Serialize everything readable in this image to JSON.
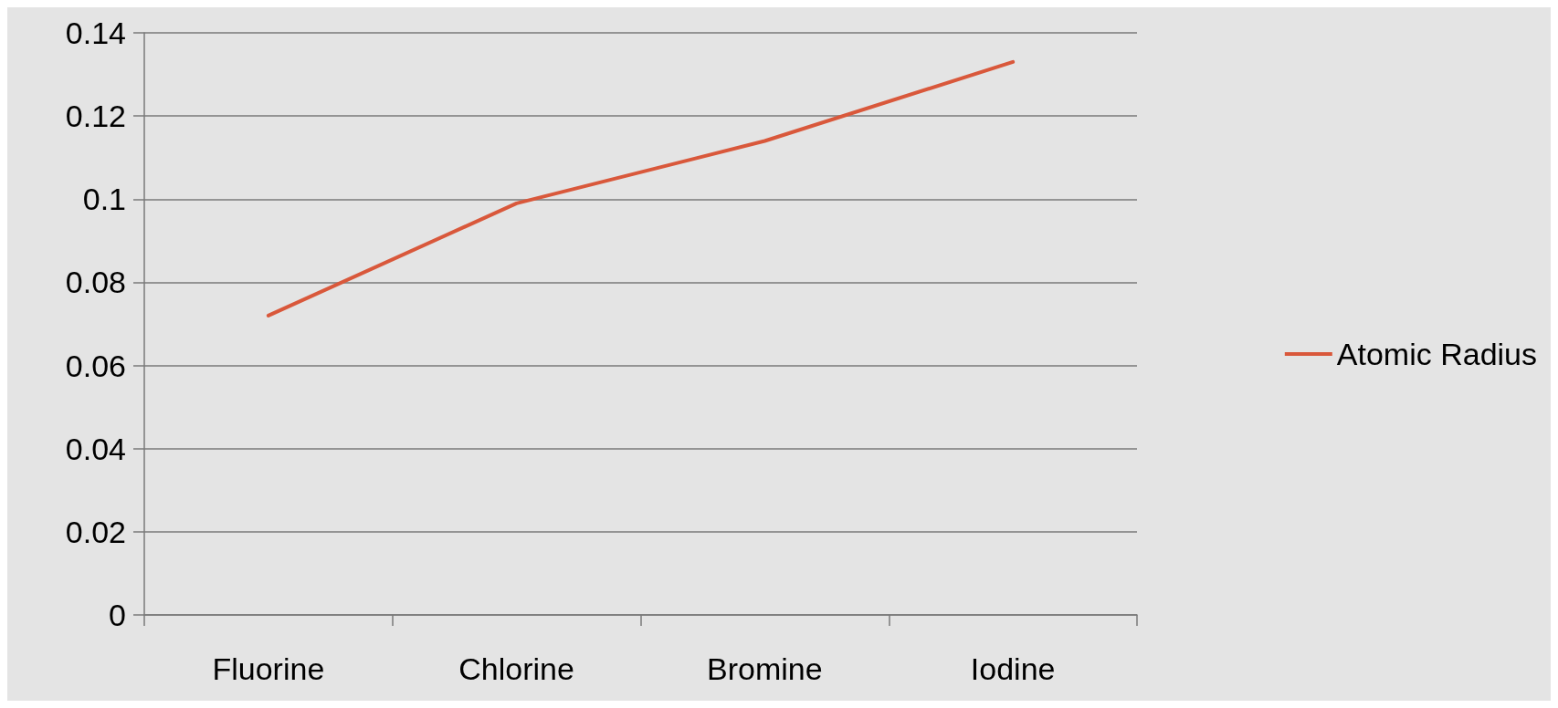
{
  "chart_data": {
    "type": "line",
    "categories": [
      "Fluorine",
      "Chlorine",
      "Bromine",
      "Iodine"
    ],
    "series": [
      {
        "name": "Atomic Radius",
        "color": "#d9583b",
        "values": [
          0.072,
          0.099,
          0.114,
          0.133
        ]
      }
    ],
    "ylim": [
      0,
      0.14
    ],
    "yticks": [
      0,
      0.02,
      0.04,
      0.06,
      0.08,
      0.1,
      0.12,
      0.14
    ],
    "grid": "y",
    "legend": "right",
    "marker": "none"
  }
}
